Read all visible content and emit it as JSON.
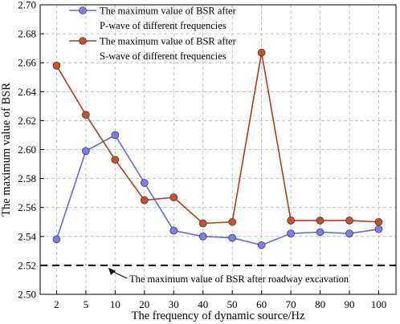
{
  "chart_data": {
    "type": "line",
    "xlabel": "The frequency of dynamic source/Hz",
    "ylabel": "The maximum value of BSR",
    "categories": [
      "2",
      "5",
      "10",
      "20",
      "30",
      "40",
      "50",
      "60",
      "70",
      "80",
      "90",
      "100"
    ],
    "ylim": [
      2.5,
      2.7
    ],
    "yticks": [
      "2.50",
      "2.52",
      "2.54",
      "2.56",
      "2.58",
      "2.60",
      "2.62",
      "2.64",
      "2.66",
      "2.68",
      "2.70"
    ],
    "grid": true,
    "legend_position": "top-left",
    "series": [
      {
        "name_line1": "The maximum value of BSR after",
        "name_line2": "P-wave of different frequencies",
        "color": "#6666e0",
        "marker_color": "#7d7df0",
        "values": [
          2.538,
          2.599,
          2.61,
          2.577,
          2.544,
          2.54,
          2.539,
          2.534,
          2.542,
          2.543,
          2.542,
          2.545
        ]
      },
      {
        "name_line1": "The maximum value of BSR after",
        "name_line2": "S-wave of different frequencies",
        "color": "#b33a1a",
        "marker_color": "#c8502c",
        "values": [
          2.658,
          2.624,
          2.593,
          2.565,
          2.567,
          2.549,
          2.55,
          2.667,
          2.551,
          2.551,
          2.551,
          2.55
        ]
      }
    ],
    "reference_line": {
      "value": 2.52,
      "label": "The maximum value of BSR after roadway excavation"
    }
  }
}
